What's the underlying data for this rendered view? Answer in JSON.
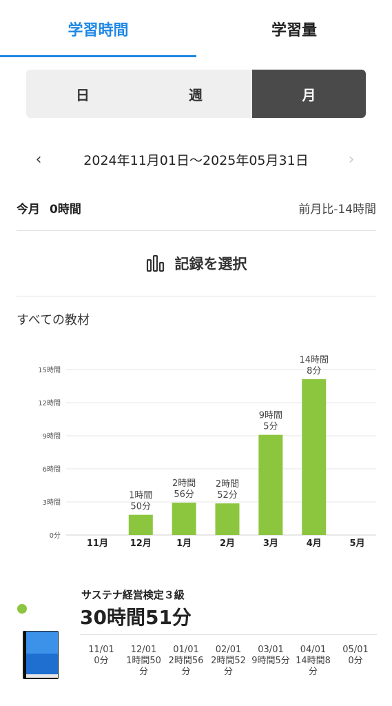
{
  "tabs": [
    {
      "label": "学習時間",
      "active": true
    },
    {
      "label": "学習量",
      "active": false
    }
  ],
  "segments": [
    {
      "label": "日",
      "active": false
    },
    {
      "label": "週",
      "active": false
    },
    {
      "label": "月",
      "active": true
    }
  ],
  "date_range": {
    "prev_icon": "chevron-left-icon",
    "prev_glyph": "‹",
    "label": "2024年11月01日〜2025年05月31日",
    "next_icon": "chevron-right-icon",
    "next_glyph": "›"
  },
  "summary": {
    "this_month_label": "今月",
    "this_month_value": "0時間",
    "comparison": "前月比-14時間"
  },
  "record_select": {
    "label": "記録を選択",
    "icon": "bar-chart-icon"
  },
  "material_filter": "すべての教材",
  "colors": {
    "accent": "#1e88e5",
    "bar": "#8cc63f",
    "segment_active": "#4a4a4a"
  },
  "chart_data": {
    "type": "bar",
    "categories": [
      "11月",
      "12月",
      "1月",
      "2月",
      "3月",
      "4月",
      "5月"
    ],
    "values": [
      0,
      1.833,
      2.933,
      2.867,
      9.083,
      14.133,
      0
    ],
    "value_labels": [
      [
        "",
        ""
      ],
      [
        "1時間",
        "50分"
      ],
      [
        "2時間",
        "56分"
      ],
      [
        "2時間",
        "52分"
      ],
      [
        "9時間",
        "5分"
      ],
      [
        "14時間",
        "8分"
      ],
      [
        "",
        ""
      ]
    ],
    "y_ticks": [
      {
        "value": 0,
        "label": "0分"
      },
      {
        "value": 3,
        "label": "3時間"
      },
      {
        "value": 6,
        "label": "6時間"
      },
      {
        "value": 9,
        "label": "9時間"
      },
      {
        "value": 12,
        "label": "12時間"
      },
      {
        "value": 15,
        "label": "15時間"
      }
    ],
    "ylim": [
      0,
      15
    ],
    "grid": true
  },
  "course": {
    "title": "サステナ経営検定３級",
    "total": "30時間51分",
    "months": [
      {
        "date": "11/01",
        "time": "0分"
      },
      {
        "date": "12/01",
        "time": "1時間50分"
      },
      {
        "date": "01/01",
        "time": "2時間56分"
      },
      {
        "date": "02/01",
        "time": "2時間52分"
      },
      {
        "date": "03/01",
        "time": "9時間5分"
      },
      {
        "date": "04/01",
        "time": "14時間8分"
      },
      {
        "date": "05/01",
        "time": "0分"
      }
    ]
  }
}
